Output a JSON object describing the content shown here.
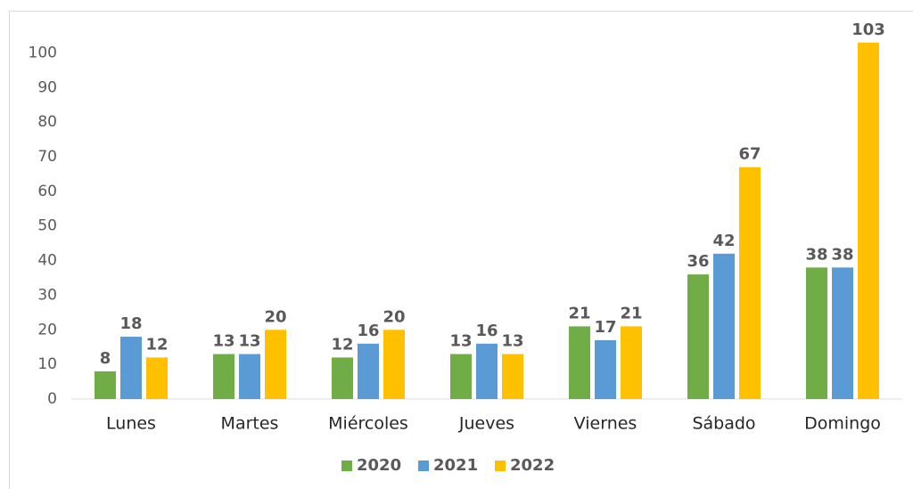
{
  "chart_data": {
    "type": "bar",
    "categories": [
      "Lunes",
      "Martes",
      "Miércoles",
      "Jueves",
      "Viernes",
      "Sábado",
      "Domingo"
    ],
    "series": [
      {
        "name": "2020",
        "color": "#70ad47",
        "values": [
          8,
          13,
          12,
          13,
          21,
          36,
          38
        ]
      },
      {
        "name": "2021",
        "color": "#5b9bd5",
        "values": [
          18,
          13,
          16,
          16,
          17,
          42,
          38
        ]
      },
      {
        "name": "2022",
        "color": "#ffc000",
        "values": [
          12,
          20,
          20,
          13,
          21,
          67,
          103
        ]
      }
    ],
    "ylim": [
      0,
      105
    ],
    "yticks": [
      0,
      10,
      20,
      30,
      40,
      50,
      60,
      70,
      80,
      90,
      100
    ],
    "grid": false,
    "legend": "bottom"
  }
}
